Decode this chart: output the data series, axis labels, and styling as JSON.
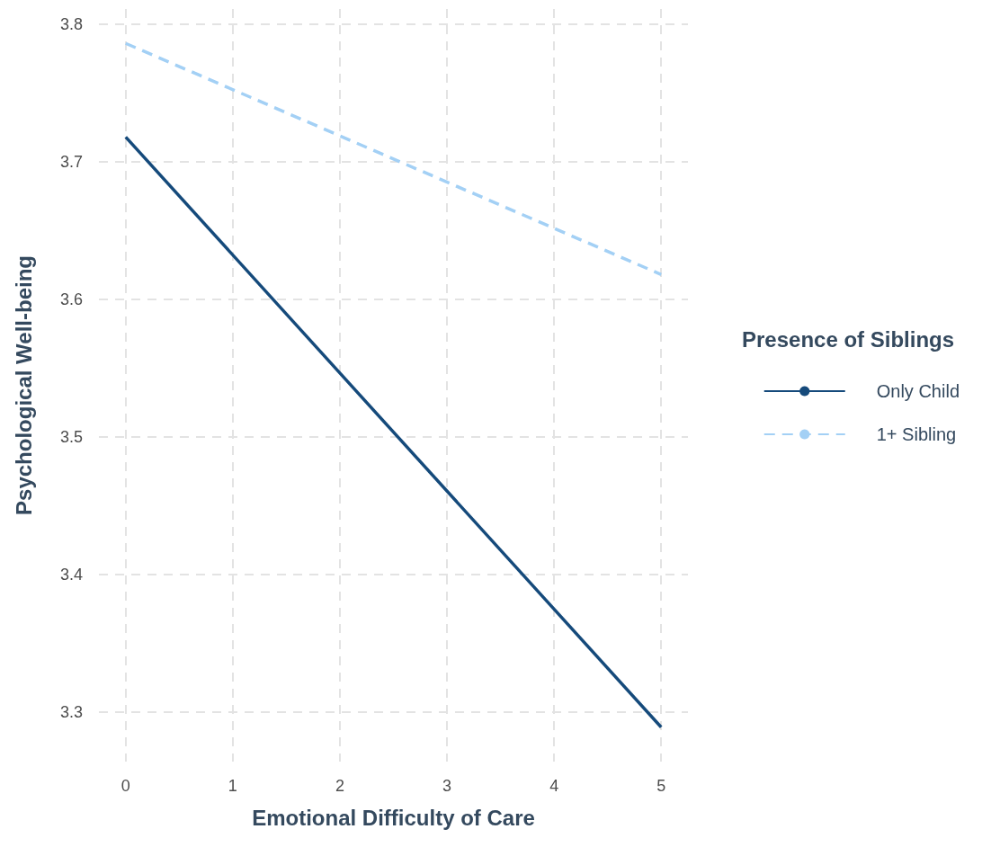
{
  "chart_data": {
    "type": "line",
    "xlabel": "Emotional Difficulty of Care",
    "ylabel": "Psychological Well-being",
    "legend_title": "Presence of Siblings",
    "x": [
      0,
      5
    ],
    "series": [
      {
        "name": "Only Child",
        "color": "#154a7b",
        "values": [
          3.718,
          3.289
        ],
        "line_style": "solid"
      },
      {
        "name": "1+ Sibling",
        "color": "#a3d0f5",
        "values": [
          3.786,
          3.618
        ],
        "line_style": "dashed"
      }
    ],
    "xlim": [
      -0.25,
      5.25
    ],
    "xticks": [
      0,
      1,
      2,
      3,
      4,
      5
    ],
    "ylim": [
      3.264,
      3.811
    ],
    "yticks": [
      3.3,
      3.4,
      3.5,
      3.6,
      3.7,
      3.8
    ],
    "grid": true,
    "legend": "right",
    "marker": "none"
  }
}
